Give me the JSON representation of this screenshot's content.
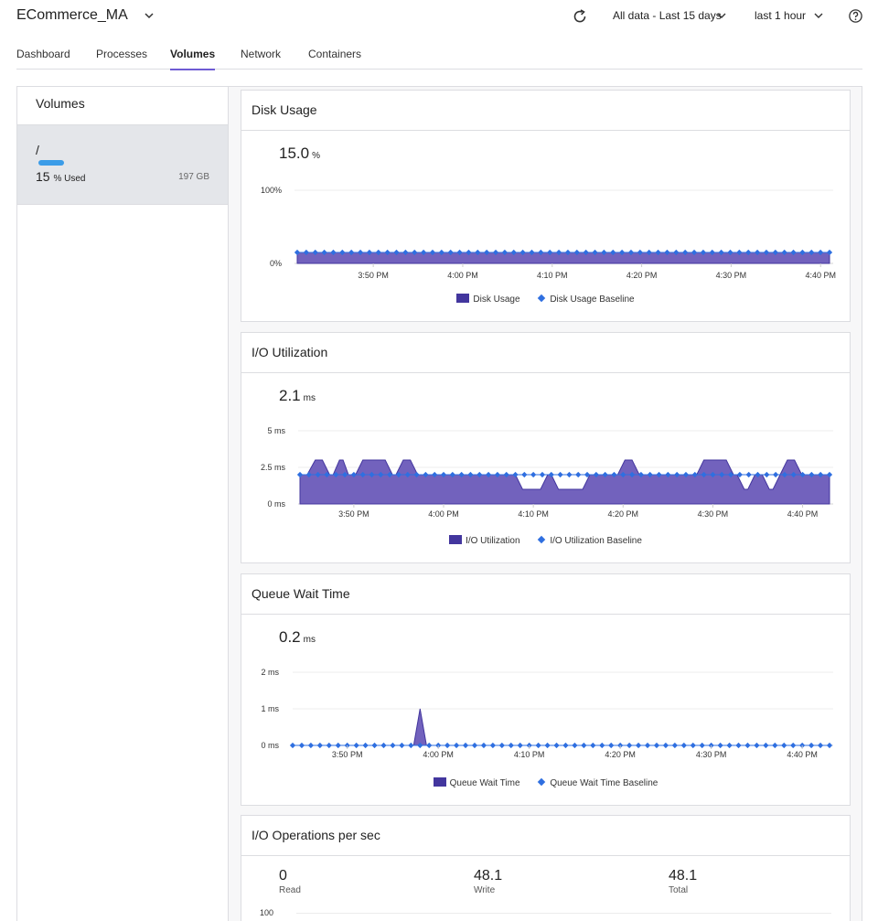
{
  "header": {
    "app_title": "ECommerce_MA",
    "data_range": "All data - Last 15 days",
    "time_window": "last 1 hour"
  },
  "tabs": [
    {
      "label": "Dashboard",
      "active": false
    },
    {
      "label": "Processes",
      "active": false
    },
    {
      "label": "Volumes",
      "active": true
    },
    {
      "label": "Network",
      "active": false
    },
    {
      "label": "Containers",
      "active": false
    }
  ],
  "sidebar": {
    "title": "Volumes",
    "volume": {
      "name": "/",
      "used_value": "15",
      "used_unit": "% Used",
      "used_fraction": 0.15,
      "size": "197 GB"
    }
  },
  "colors": {
    "area": "#43369e",
    "area_fill": "#7262bd",
    "baseline": "#2f6fe0",
    "accent": "#6e5bd4",
    "volume_bar": "#3b9ce8"
  },
  "time_ticks": [
    "3:50 PM",
    "4:00 PM",
    "4:10 PM",
    "4:20 PM",
    "4:30 PM",
    "4:40 PM"
  ],
  "cards": {
    "disk": {
      "title": "Disk Usage",
      "value": "15.0",
      "unit": "%",
      "legend_area": "Disk Usage",
      "legend_baseline": "Disk Usage Baseline"
    },
    "io": {
      "title": "I/O Utilization",
      "value": "2.1",
      "unit": "ms",
      "legend_area": "I/O Utilization",
      "legend_baseline": "I/O Utilization Baseline"
    },
    "queue": {
      "title": "Queue Wait Time",
      "value": "0.2",
      "unit": "ms",
      "legend_area": "Queue Wait Time",
      "legend_baseline": "Queue Wait Time Baseline"
    },
    "ops": {
      "title": "I/O Operations per sec",
      "stats": [
        {
          "value": "0",
          "label": "Read"
        },
        {
          "value": "48.1",
          "label": "Write"
        },
        {
          "value": "48.1",
          "label": "Total"
        }
      ],
      "y_top_label": "100"
    }
  },
  "chart_data": [
    {
      "type": "area",
      "title": "Disk Usage",
      "y_tick_labels": [
        "0%",
        "100%"
      ],
      "ylim": [
        0,
        100
      ],
      "x_ticks": [
        "3:50 PM",
        "4:00 PM",
        "4:10 PM",
        "4:20 PM",
        "4:30 PM",
        "4:40 PM"
      ],
      "x_range_minutes": [
        -8.5,
        51
      ],
      "series": [
        {
          "name": "Disk Usage",
          "points": [
            [
              -8.5,
              15
            ],
            [
              51,
              15
            ]
          ]
        },
        {
          "name": "Disk Usage Baseline",
          "value": 15
        }
      ],
      "legend_position": "bottom"
    },
    {
      "type": "area",
      "title": "I/O Utilization",
      "y_tick_labels": [
        "0 ms",
        "2.5 ms",
        "5 ms"
      ],
      "ylim": [
        0,
        5
      ],
      "x_ticks": [
        "3:50 PM",
        "4:00 PM",
        "4:10 PM",
        "4:20 PM",
        "4:30 PM",
        "4:40 PM"
      ],
      "x_range_minutes": [
        -6,
        53
      ],
      "series": [
        {
          "name": "I/O Utilization",
          "points": [
            [
              -6,
              2
            ],
            [
              -5.2,
              2
            ],
            [
              -4.3,
              3
            ],
            [
              -3.5,
              3
            ],
            [
              -2.7,
              2
            ],
            [
              -2.3,
              2
            ],
            [
              -1.6,
              3
            ],
            [
              -1.2,
              3
            ],
            [
              -0.6,
              2
            ],
            [
              0.2,
              2
            ],
            [
              1,
              3
            ],
            [
              3.5,
              3
            ],
            [
              4.3,
              2
            ],
            [
              4.7,
              2
            ],
            [
              5.5,
              3
            ],
            [
              6.3,
              3
            ],
            [
              7.1,
              2
            ],
            [
              18,
              2
            ],
            [
              18.8,
              1
            ],
            [
              20.8,
              1
            ],
            [
              21.6,
              2
            ],
            [
              22,
              2
            ],
            [
              22.8,
              1
            ],
            [
              25.5,
              1
            ],
            [
              26.3,
              2
            ],
            [
              29.4,
              2
            ],
            [
              30.2,
              3
            ],
            [
              31,
              3
            ],
            [
              31.8,
              2
            ],
            [
              38.2,
              2
            ],
            [
              39,
              3
            ],
            [
              41.5,
              3
            ],
            [
              42.3,
              2
            ],
            [
              42.7,
              2
            ],
            [
              43.5,
              1
            ],
            [
              43.9,
              1
            ],
            [
              44.7,
              2
            ],
            [
              45.5,
              2
            ],
            [
              46.3,
              1
            ],
            [
              46.7,
              1
            ],
            [
              47.5,
              2
            ],
            [
              48.3,
              3
            ],
            [
              49.1,
              3
            ],
            [
              49.9,
              2
            ],
            [
              50.3,
              2
            ],
            [
              53,
              2
            ]
          ]
        },
        {
          "name": "I/O Utilization Baseline",
          "value": 2
        }
      ],
      "legend_position": "bottom"
    },
    {
      "type": "area",
      "title": "Queue Wait Time",
      "y_tick_labels": [
        "0 ms",
        "1 ms",
        "2 ms"
      ],
      "ylim": [
        0,
        2
      ],
      "x_ticks": [
        "3:50 PM",
        "4:00 PM",
        "4:10 PM",
        "4:20 PM",
        "4:30 PM",
        "4:40 PM"
      ],
      "x_range_minutes": [
        -6,
        53
      ],
      "series": [
        {
          "name": "Queue Wait Time",
          "points": [
            [
              -6,
              0
            ],
            [
              7.3,
              0
            ],
            [
              8,
              1
            ],
            [
              8.7,
              0
            ],
            [
              53,
              0
            ]
          ]
        },
        {
          "name": "Queue Wait Time Baseline",
          "value": 0
        }
      ],
      "legend_position": "bottom"
    }
  ]
}
